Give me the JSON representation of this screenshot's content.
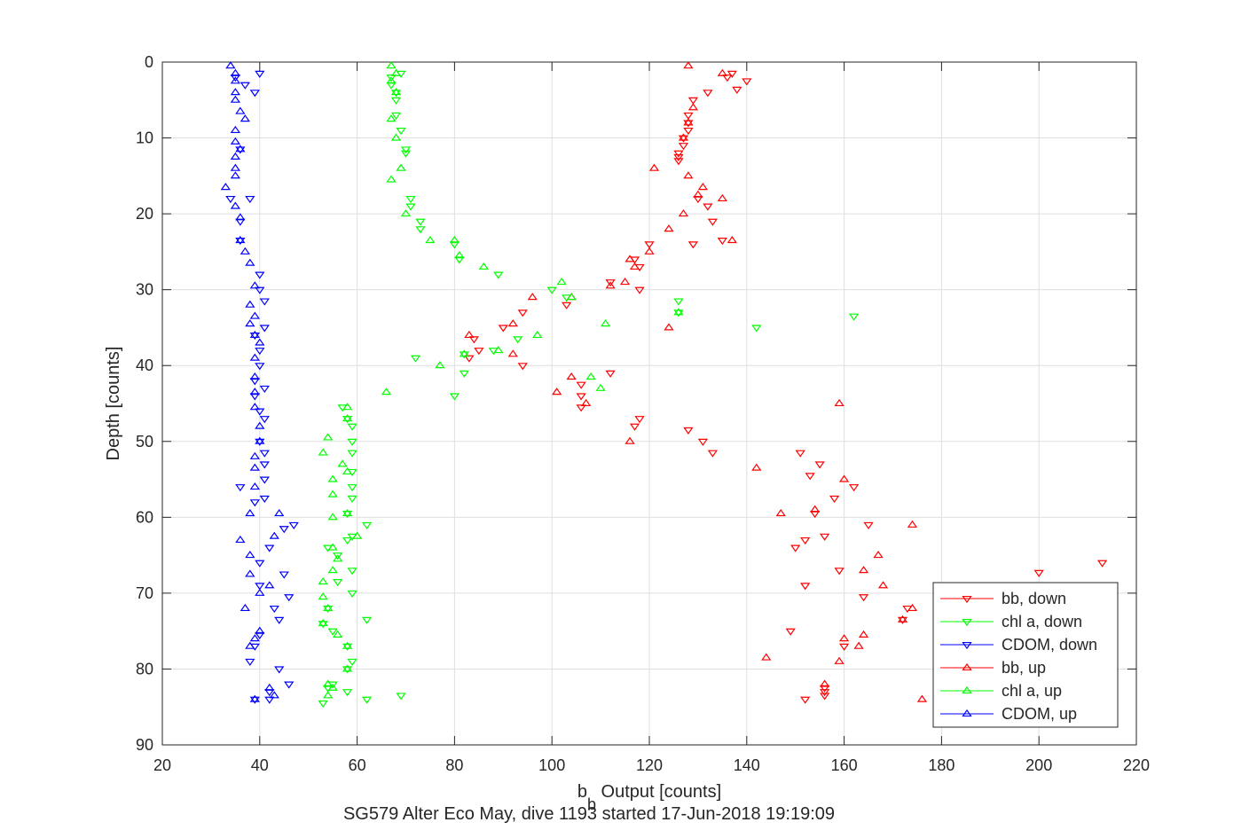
{
  "chart_data": {
    "type": "scatter",
    "xlabel_main": "b",
    "xlabel_sub": "b",
    "xlabel_rest": " Output [counts]",
    "ylabel": "Depth [counts]",
    "caption": "SG579 Alter Eco May, dive 1193 started 17-Jun-2018 19:19:09",
    "xlim": [
      20,
      220
    ],
    "ylim": [
      0,
      90
    ],
    "y_reversed": true,
    "grid": true,
    "legend_position": "bottom-right",
    "x_ticks": [
      20,
      40,
      60,
      80,
      100,
      120,
      140,
      160,
      180,
      200,
      220
    ],
    "y_ticks": [
      0,
      10,
      20,
      30,
      40,
      50,
      60,
      70,
      80,
      90
    ],
    "series": [
      {
        "name": "bb, down",
        "color": "#ff0000",
        "marker": "triangle-down",
        "points": [
          [
            137,
            1.5
          ],
          [
            136,
            2
          ],
          [
            140,
            2.5
          ],
          [
            138,
            3.6
          ],
          [
            132,
            4
          ],
          [
            129,
            5
          ],
          [
            128,
            7
          ],
          [
            128,
            8
          ],
          [
            128,
            9
          ],
          [
            127,
            10
          ],
          [
            127,
            11
          ],
          [
            126,
            12
          ],
          [
            126,
            12.5
          ],
          [
            126,
            13
          ],
          [
            130,
            18
          ],
          [
            132,
            19
          ],
          [
            133,
            21
          ],
          [
            135,
            23.5
          ],
          [
            129,
            24
          ],
          [
            120,
            24
          ],
          [
            117,
            26
          ],
          [
            118,
            27
          ],
          [
            112,
            29
          ],
          [
            118,
            30
          ],
          [
            103,
            32
          ],
          [
            94,
            33
          ],
          [
            90,
            35
          ],
          [
            84,
            36.5
          ],
          [
            85,
            38
          ],
          [
            94,
            40
          ],
          [
            83,
            39
          ],
          [
            112,
            41
          ],
          [
            106,
            42.5
          ],
          [
            106,
            44
          ],
          [
            106,
            45.5
          ],
          [
            118,
            47
          ],
          [
            117,
            48
          ],
          [
            128,
            48.5
          ],
          [
            131,
            50
          ],
          [
            133,
            51.5
          ],
          [
            151,
            51.5
          ],
          [
            155,
            53
          ],
          [
            153,
            54.5
          ],
          [
            162,
            56
          ],
          [
            158,
            57.5
          ],
          [
            154,
            59.5
          ],
          [
            165,
            61
          ],
          [
            156,
            62.5
          ],
          [
            152,
            63
          ],
          [
            150,
            64
          ],
          [
            159,
            67
          ],
          [
            200,
            67.3
          ],
          [
            213,
            66
          ],
          [
            152,
            69
          ],
          [
            164,
            70.5
          ],
          [
            173,
            72
          ],
          [
            172,
            73.5
          ],
          [
            149,
            75
          ],
          [
            160,
            77
          ],
          [
            156,
            82.5
          ],
          [
            156,
            83
          ],
          [
            156,
            83.5
          ],
          [
            152,
            84
          ]
        ]
      },
      {
        "name": "chl a, down",
        "color": "#00ff00",
        "marker": "triangle-down",
        "points": [
          [
            69,
            1.5
          ],
          [
            67,
            2
          ],
          [
            67,
            3
          ],
          [
            68,
            4
          ],
          [
            68,
            5
          ],
          [
            68,
            7
          ],
          [
            69,
            9
          ],
          [
            70,
            11.5
          ],
          [
            70,
            12
          ],
          [
            71,
            18
          ],
          [
            71,
            19
          ],
          [
            73,
            21
          ],
          [
            73,
            22
          ],
          [
            80,
            24
          ],
          [
            81,
            26
          ],
          [
            89,
            28
          ],
          [
            100,
            30
          ],
          [
            103,
            31
          ],
          [
            126,
            31.5
          ],
          [
            126,
            33
          ],
          [
            162,
            33.5
          ],
          [
            142,
            35
          ],
          [
            93,
            36.5
          ],
          [
            88,
            38
          ],
          [
            82,
            38.5
          ],
          [
            72,
            39
          ],
          [
            82,
            41
          ],
          [
            80,
            44
          ],
          [
            57,
            45.5
          ],
          [
            58,
            47
          ],
          [
            59,
            48
          ],
          [
            59,
            50
          ],
          [
            59,
            51.5
          ],
          [
            59,
            54
          ],
          [
            59,
            56
          ],
          [
            59,
            57.5
          ],
          [
            58,
            59.5
          ],
          [
            62,
            61
          ],
          [
            59,
            62.5
          ],
          [
            58,
            63
          ],
          [
            54,
            64
          ],
          [
            56,
            65
          ],
          [
            59,
            67
          ],
          [
            56,
            68.5
          ],
          [
            59,
            70
          ],
          [
            54,
            72
          ],
          [
            62,
            73.5
          ],
          [
            53,
            74
          ],
          [
            55,
            75
          ],
          [
            58,
            77
          ],
          [
            59,
            79
          ],
          [
            58,
            80
          ],
          [
            55,
            82
          ],
          [
            54,
            82.5
          ],
          [
            58,
            83
          ],
          [
            69,
            83.5
          ],
          [
            62,
            84
          ],
          [
            53,
            84.5
          ]
        ]
      },
      {
        "name": "CDOM, down",
        "color": "#0000ff",
        "marker": "triangle-down",
        "points": [
          [
            40,
            1.5
          ],
          [
            35,
            2
          ],
          [
            37,
            3
          ],
          [
            39,
            4
          ],
          [
            36,
            11.5
          ],
          [
            34,
            18
          ],
          [
            38,
            18
          ],
          [
            36,
            21
          ],
          [
            36,
            23.5
          ],
          [
            40,
            28
          ],
          [
            40,
            30
          ],
          [
            41,
            31.5
          ],
          [
            41,
            35
          ],
          [
            39,
            36
          ],
          [
            40,
            38
          ],
          [
            40,
            40
          ],
          [
            39,
            42
          ],
          [
            41,
            43
          ],
          [
            39,
            44
          ],
          [
            40,
            46
          ],
          [
            41,
            47
          ],
          [
            40,
            50
          ],
          [
            41,
            51.5
          ],
          [
            41,
            53
          ],
          [
            41,
            55
          ],
          [
            36,
            56
          ],
          [
            41,
            57.5
          ],
          [
            39,
            58
          ],
          [
            47,
            61
          ],
          [
            45,
            61.5
          ],
          [
            42,
            64
          ],
          [
            40,
            66
          ],
          [
            45,
            67.5
          ],
          [
            40,
            69
          ],
          [
            46,
            70.5
          ],
          [
            43,
            72
          ],
          [
            44,
            73.5
          ],
          [
            40,
            75.5
          ],
          [
            39,
            77
          ],
          [
            38,
            79
          ],
          [
            44,
            80
          ],
          [
            46,
            82
          ],
          [
            42,
            83
          ],
          [
            42,
            84
          ],
          [
            39,
            84
          ]
        ]
      },
      {
        "name": "bb, up",
        "color": "#ff0000",
        "marker": "triangle-up",
        "points": [
          [
            128,
            0.5
          ],
          [
            135,
            1.5
          ],
          [
            129,
            6
          ],
          [
            128,
            8
          ],
          [
            127,
            10
          ],
          [
            121,
            14
          ],
          [
            128,
            15
          ],
          [
            131,
            16.5
          ],
          [
            130,
            17.5
          ],
          [
            135,
            18
          ],
          [
            127,
            20
          ],
          [
            124,
            22
          ],
          [
            137,
            23.5
          ],
          [
            120,
            25
          ],
          [
            116,
            26
          ],
          [
            117,
            27
          ],
          [
            115,
            29
          ],
          [
            104,
            31
          ],
          [
            96,
            31
          ],
          [
            112,
            29.5
          ],
          [
            92,
            34.5
          ],
          [
            124,
            35
          ],
          [
            83,
            36
          ],
          [
            92,
            38.5
          ],
          [
            104,
            41.5
          ],
          [
            101,
            43.5
          ],
          [
            107,
            45
          ],
          [
            159,
            45
          ],
          [
            116,
            50
          ],
          [
            142,
            53.5
          ],
          [
            160,
            55
          ],
          [
            147,
            59.5
          ],
          [
            154,
            59
          ],
          [
            174,
            61
          ],
          [
            167,
            65
          ],
          [
            164,
            67
          ],
          [
            168,
            69
          ],
          [
            174,
            72
          ],
          [
            172,
            73.5
          ],
          [
            164,
            75.5
          ],
          [
            160,
            76
          ],
          [
            163,
            77
          ],
          [
            159,
            79
          ],
          [
            144,
            78.5
          ],
          [
            156,
            82
          ],
          [
            176,
            84
          ]
        ]
      },
      {
        "name": "chl a, up",
        "color": "#00ff00",
        "marker": "triangle-up",
        "points": [
          [
            67,
            0.5
          ],
          [
            68,
            1.5
          ],
          [
            67,
            2.5
          ],
          [
            68,
            4
          ],
          [
            67,
            7.5
          ],
          [
            68,
            10
          ],
          [
            69,
            14
          ],
          [
            67,
            15.5
          ],
          [
            70,
            20
          ],
          [
            75,
            23.5
          ],
          [
            80,
            23.5
          ],
          [
            81,
            25.5
          ],
          [
            86,
            27
          ],
          [
            102,
            29
          ],
          [
            104,
            31
          ],
          [
            111,
            34.5
          ],
          [
            126,
            33
          ],
          [
            97,
            36
          ],
          [
            89,
            38
          ],
          [
            82,
            38.5
          ],
          [
            77,
            40
          ],
          [
            108,
            41.5
          ],
          [
            110,
            43
          ],
          [
            66,
            43.5
          ],
          [
            58,
            45.5
          ],
          [
            58,
            47
          ],
          [
            54,
            49.5
          ],
          [
            53,
            51.5
          ],
          [
            57,
            53
          ],
          [
            55,
            55
          ],
          [
            58,
            54
          ],
          [
            55,
            57
          ],
          [
            58,
            59.5
          ],
          [
            55,
            60
          ],
          [
            60,
            62.5
          ],
          [
            55,
            64
          ],
          [
            56,
            65.5
          ],
          [
            55,
            67
          ],
          [
            53,
            68.5
          ],
          [
            53,
            70.5
          ],
          [
            54,
            72
          ],
          [
            53,
            74
          ],
          [
            56,
            75.5
          ],
          [
            58,
            77
          ],
          [
            58,
            80
          ],
          [
            54,
            82
          ],
          [
            55,
            82.5
          ],
          [
            54,
            83.5
          ]
        ]
      },
      {
        "name": "CDOM, up",
        "color": "#0000ff",
        "marker": "triangle-up",
        "points": [
          [
            34,
            0.5
          ],
          [
            35,
            1.5
          ],
          [
            35,
            2.5
          ],
          [
            35,
            4
          ],
          [
            35,
            5
          ],
          [
            36,
            6.5
          ],
          [
            37,
            7.5
          ],
          [
            35,
            9
          ],
          [
            35,
            10.5
          ],
          [
            36,
            11.5
          ],
          [
            35,
            12.5
          ],
          [
            35,
            14
          ],
          [
            35,
            15
          ],
          [
            33,
            16.5
          ],
          [
            35,
            19
          ],
          [
            36,
            20.5
          ],
          [
            36,
            23.5
          ],
          [
            37,
            25
          ],
          [
            38,
            26.5
          ],
          [
            39,
            29.5
          ],
          [
            38,
            32
          ],
          [
            39,
            33.5
          ],
          [
            38,
            34.5
          ],
          [
            39,
            36
          ],
          [
            40,
            37
          ],
          [
            39,
            39
          ],
          [
            39,
            41.5
          ],
          [
            39,
            43.5
          ],
          [
            39,
            45.5
          ],
          [
            40,
            48
          ],
          [
            40,
            50
          ],
          [
            39,
            52
          ],
          [
            39,
            53.5
          ],
          [
            39,
            56
          ],
          [
            38,
            59.5
          ],
          [
            44,
            59.5
          ],
          [
            43,
            62.5
          ],
          [
            36,
            63
          ],
          [
            38,
            65
          ],
          [
            38,
            67.5
          ],
          [
            42,
            69
          ],
          [
            40,
            70
          ],
          [
            37,
            72
          ],
          [
            40,
            75
          ],
          [
            39,
            76
          ],
          [
            38,
            77
          ],
          [
            42,
            82.5
          ],
          [
            43,
            83.5
          ],
          [
            39,
            84
          ]
        ]
      }
    ]
  }
}
